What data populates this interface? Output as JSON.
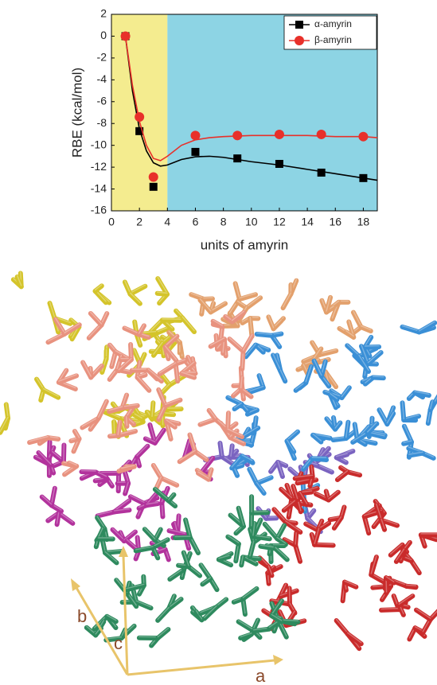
{
  "chart_data": {
    "type": "line",
    "xlabel": "units of amyrin",
    "ylabel": "RBE (kcal/mol)",
    "xlim": [
      0,
      19
    ],
    "ylim": [
      -16,
      2
    ],
    "xticks": [
      0,
      2,
      4,
      6,
      8,
      10,
      12,
      14,
      16,
      18
    ],
    "yticks": [
      2,
      0,
      -2,
      -4,
      -6,
      -8,
      -10,
      -12,
      -14,
      -16
    ],
    "regions": [
      {
        "from": 0,
        "to": 4,
        "color": "#f4ec8f"
      },
      {
        "from": 4,
        "to": 19,
        "color": "#8dd4e4"
      }
    ],
    "legend": "upper right",
    "x": [
      1,
      2,
      3,
      6,
      9,
      12,
      15,
      18
    ],
    "fit_x": [
      1,
      1.5,
      2,
      2.5,
      3,
      3.5,
      4,
      5,
      6,
      7,
      8,
      10,
      12,
      14,
      16,
      18,
      19
    ],
    "series": [
      {
        "name": "α-amyrin",
        "color": "#000000",
        "marker": "square",
        "values": [
          0,
          -8.7,
          -13.8,
          -10.6,
          -11.2,
          -11.7,
          -12.5,
          -13.0
        ],
        "fit_values": [
          0,
          -5,
          -8.5,
          -10.5,
          -11.6,
          -11.9,
          -11.8,
          -11.3,
          -11.05,
          -11.0,
          -11.1,
          -11.5,
          -11.8,
          -12.2,
          -12.6,
          -13.0,
          -13.2
        ]
      },
      {
        "name": "β-amyrin",
        "color": "#e8302a",
        "marker": "circle",
        "values": [
          0,
          -7.4,
          -12.9,
          -9.1,
          -9.1,
          -9.0,
          -9.0,
          -9.2
        ],
        "fit_values": [
          0,
          -4.5,
          -7.8,
          -10.0,
          -11.2,
          -11.4,
          -11.0,
          -10.0,
          -9.5,
          -9.3,
          -9.2,
          -9.1,
          -9.1,
          -9.1,
          -9.2,
          -9.2,
          -9.3
        ]
      }
    ]
  },
  "crystal": {
    "axes": [
      "a",
      "b",
      "c"
    ]
  }
}
